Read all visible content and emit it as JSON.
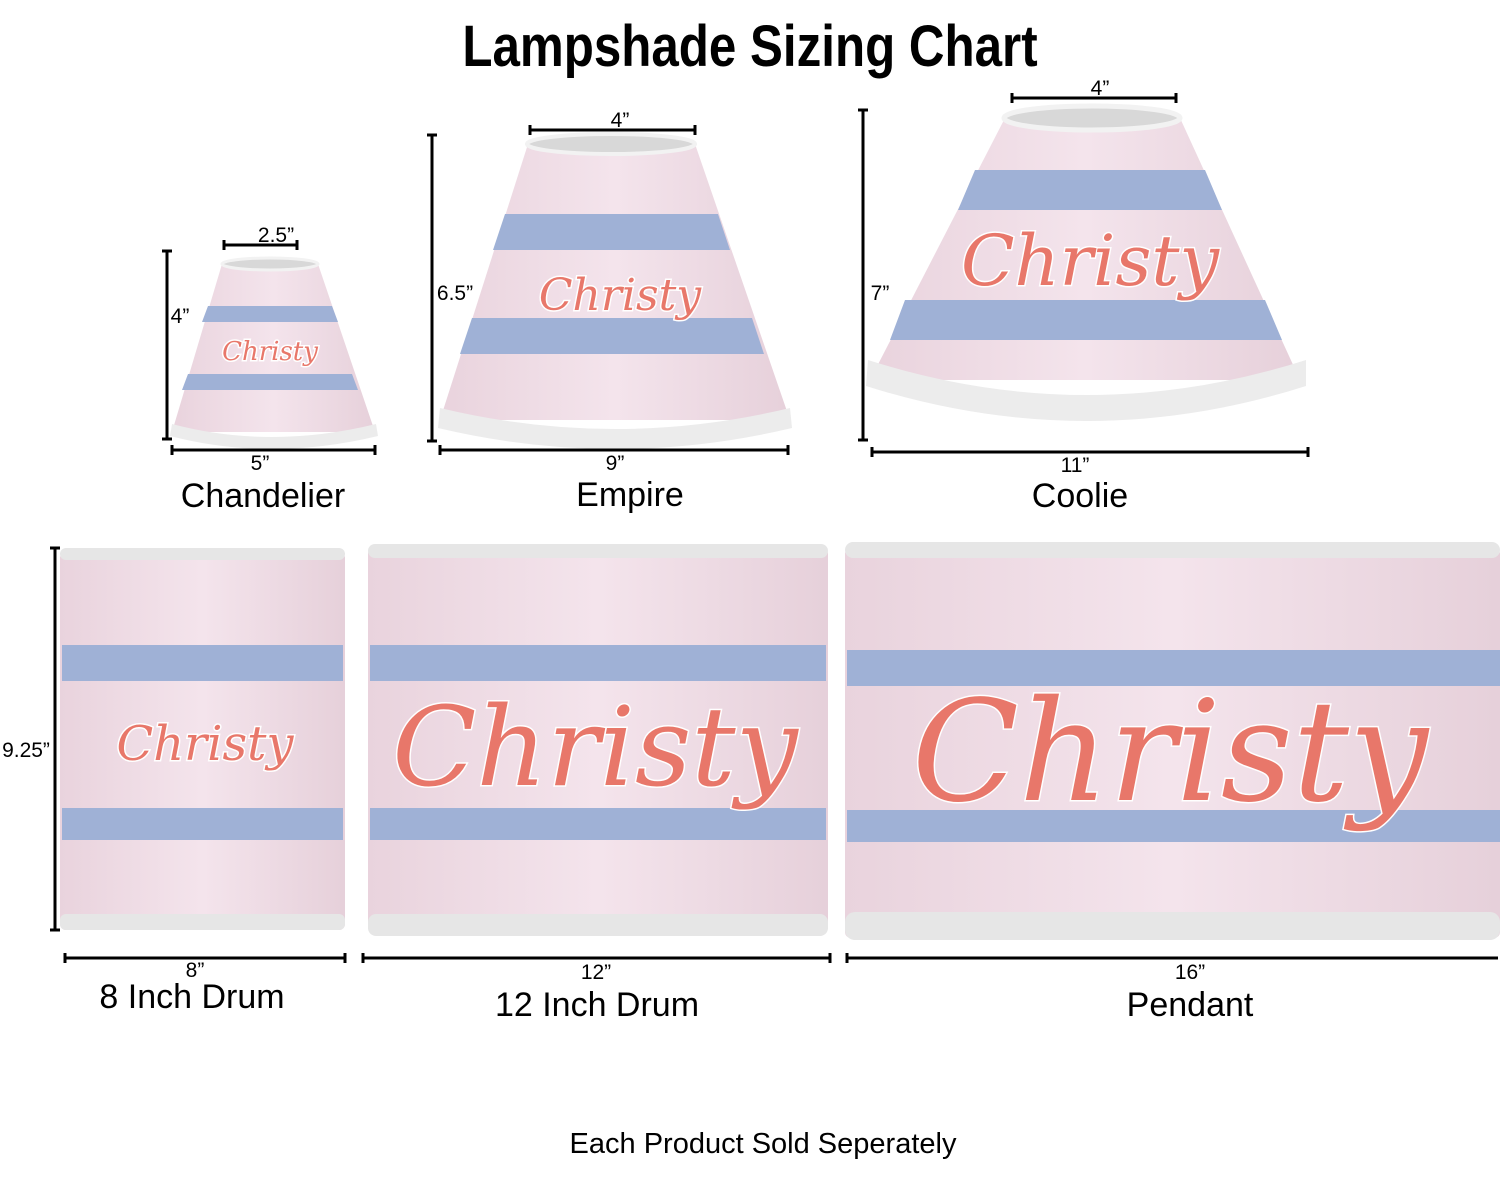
{
  "title": "Lampshade Sizing Chart",
  "personalization": "Christy",
  "colors": {
    "shade_background": "#f1dde6",
    "stripe": "#9fb1d6",
    "trim": "#e6e6e6",
    "script_text": "#e8776a"
  },
  "shades": [
    {
      "name": "Chandelier",
      "top": "2.5”",
      "bottom": "5”",
      "height": "4”"
    },
    {
      "name": "Empire",
      "top": "4”",
      "bottom": "9”",
      "height": "6.5”"
    },
    {
      "name": "Coolie",
      "top": "4”",
      "bottom": "11”",
      "height": "7”"
    },
    {
      "name": "8 Inch Drum",
      "width": "8”",
      "height": "9.25”"
    },
    {
      "name": "12 Inch Drum",
      "width": "12”"
    },
    {
      "name": "Pendant",
      "width": "16”"
    }
  ],
  "footer": "Each Product Sold Seperately"
}
